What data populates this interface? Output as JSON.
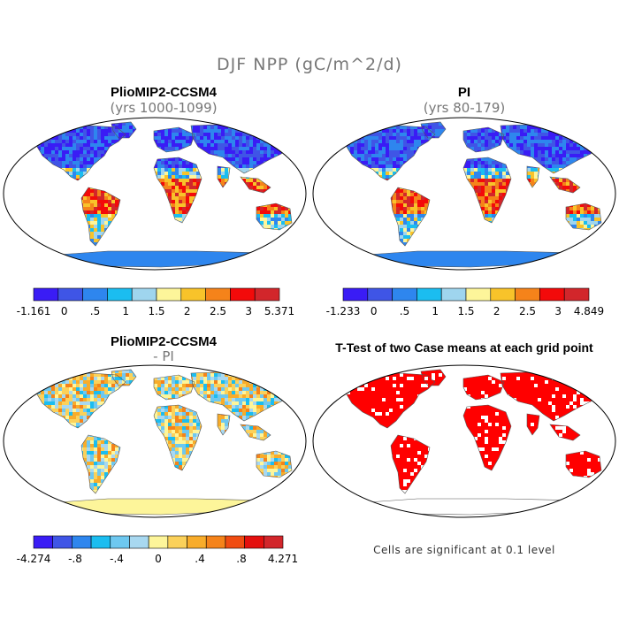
{
  "title": "DJF NPP (gC/m^2/d)",
  "colors": {
    "abs_scale": [
      "#3a1cf5",
      "#3f55e6",
      "#2e86ee",
      "#1bbdf0",
      "#9fd5ee",
      "#fdf59a",
      "#f8c32a",
      "#f5831a",
      "#f30a0a",
      "#d2262b"
    ],
    "diff_scale": [
      "#3a1cf5",
      "#3f55e6",
      "#2e86ee",
      "#1bbdf0",
      "#6ec8f0",
      "#a8d8f0",
      "#fdf59a",
      "#fbd15a",
      "#f8ac2a",
      "#f5831a",
      "#f04c12",
      "#e4100e",
      "#d2262b"
    ],
    "significant": "#ff0000",
    "land_outline": "#555555",
    "map_frame": "#000000"
  },
  "panels": [
    {
      "title": "PlioMIP2-CCSM4",
      "subtitle": "(yrs 1000-1099)",
      "colorbar": {
        "labels": [
          "-1.161",
          "0",
          ".5",
          "1",
          "1.5",
          "2",
          "2.5",
          "3",
          "5.371"
        ]
      }
    },
    {
      "title": "PI",
      "subtitle": "(yrs 80-179)",
      "colorbar": {
        "labels": [
          "-1.233",
          "0",
          ".5",
          "1",
          "1.5",
          "2",
          "2.5",
          "3",
          "4.849"
        ]
      }
    },
    {
      "title": "PlioMIP2-CCSM4",
      "subtitle": "- PI",
      "colorbar": {
        "labels": [
          "-4.274",
          "-.8",
          "-.4",
          "0",
          ".4",
          ".8",
          "4.271"
        ]
      }
    },
    {
      "title": "T-Test of two Case means at each grid point",
      "note": "Cells are significant at 0.1 level"
    }
  ]
}
